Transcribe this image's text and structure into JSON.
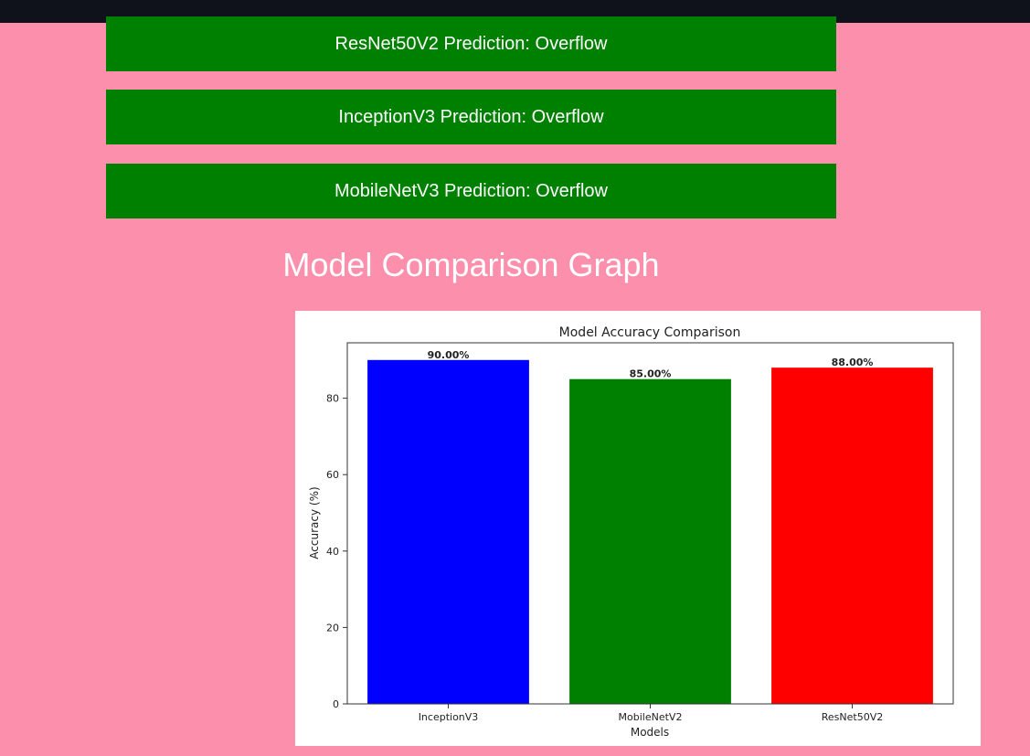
{
  "predictions": [
    {
      "label": "ResNet50V2 Prediction: Overflow"
    },
    {
      "label": "InceptionV3 Prediction: Overflow"
    },
    {
      "label": "MobileNetV3 Prediction: Overflow"
    }
  ],
  "section_title": "Model Comparison Graph",
  "colors": {
    "background": "#fc8fac",
    "topbar": "#0f121a",
    "prediction_box": "#008000",
    "text": "#ffffff"
  },
  "chart_data": {
    "type": "bar",
    "title": "Model Accuracy Comparison",
    "xlabel": "Models",
    "ylabel": "Accuracy (%)",
    "categories": [
      "InceptionV3",
      "MobileNetV2",
      "ResNet50V2"
    ],
    "values": [
      90,
      85,
      88
    ],
    "value_labels": [
      "90.00%",
      "85.00%",
      "88.00%"
    ],
    "colors": [
      "#0000ff",
      "#008000",
      "#ff0000"
    ],
    "ylim": [
      0,
      94.5
    ],
    "yticks": [
      0,
      20,
      40,
      60,
      80
    ],
    "grid": false
  }
}
